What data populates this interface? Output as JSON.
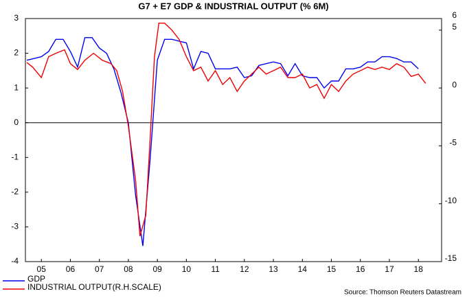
{
  "chart_data": {
    "type": "line",
    "title": "G7 + E7 GDP & INDUSTRIAL OUTPUT (% 6M)",
    "source": "Source: Thomson Reuters Datastream",
    "xlim": [
      2004.95,
      2019.3
    ],
    "xticks": [
      {
        "value": 2005.5,
        "label": "05"
      },
      {
        "value": 2006.5,
        "label": "06"
      },
      {
        "value": 2007.5,
        "label": "07"
      },
      {
        "value": 2008.5,
        "label": "08"
      },
      {
        "value": 2009.5,
        "label": "09"
      },
      {
        "value": 2010.5,
        "label": "10"
      },
      {
        "value": 2011.5,
        "label": "11"
      },
      {
        "value": 2012.5,
        "label": "12"
      },
      {
        "value": 2013.5,
        "label": "13"
      },
      {
        "value": 2014.5,
        "label": "14"
      },
      {
        "value": 2015.5,
        "label": "15"
      },
      {
        "value": 2016.5,
        "label": "16"
      },
      {
        "value": 2017.5,
        "label": "17"
      },
      {
        "value": 2018.5,
        "label": "18"
      }
    ],
    "ylim": [
      -4,
      3
    ],
    "yticks": [
      -4,
      -3,
      -2,
      -1,
      0,
      1,
      2,
      3
    ],
    "y2lim": [
      -15,
      6
    ],
    "y2ticks": [
      -15,
      -10,
      -5,
      0,
      5,
      6
    ],
    "series": [
      {
        "name": "GDP",
        "color": "#0000ee",
        "x": [
          2005.0,
          2005.25,
          2005.5,
          2005.75,
          2006.0,
          2006.25,
          2006.5,
          2006.75,
          2007.0,
          2007.25,
          2007.5,
          2007.75,
          2008.0,
          2008.25,
          2008.5,
          2008.75,
          2009.0,
          2009.25,
          2009.5,
          2009.75,
          2010.0,
          2010.25,
          2010.5,
          2010.75,
          2011.0,
          2011.25,
          2011.5,
          2011.75,
          2012.0,
          2012.25,
          2012.5,
          2012.75,
          2013.0,
          2013.25,
          2013.5,
          2013.75,
          2014.0,
          2014.25,
          2014.5,
          2014.75,
          2015.0,
          2015.25,
          2015.5,
          2015.75,
          2016.0,
          2016.25,
          2016.5,
          2016.75,
          2017.0,
          2017.25,
          2017.5,
          2017.75,
          2018.0,
          2018.25,
          2018.5
        ],
        "values": [
          1.8,
          1.85,
          1.9,
          2.05,
          2.4,
          2.4,
          2.05,
          1.6,
          2.45,
          2.45,
          2.15,
          2.0,
          1.55,
          0.85,
          0.0,
          -2.1,
          -3.55,
          -1.05,
          1.8,
          2.4,
          2.4,
          2.35,
          2.3,
          1.55,
          2.05,
          2.0,
          1.55,
          1.55,
          1.55,
          1.6,
          1.3,
          1.35,
          1.65,
          1.7,
          1.75,
          1.7,
          1.35,
          1.7,
          1.35,
          1.3,
          1.3,
          1.0,
          1.2,
          1.2,
          1.55,
          1.55,
          1.6,
          1.75,
          1.75,
          1.9,
          1.9,
          1.85,
          1.75,
          1.75,
          1.55
        ]
      },
      {
        "name": "INDUSTRIAL OUTPUT(R.H.SCALE)",
        "color": "#ee0000",
        "axis": "y2",
        "x": [
          2005.0,
          2005.2,
          2005.5,
          2005.75,
          2006.0,
          2006.3,
          2006.5,
          2006.75,
          2007.0,
          2007.3,
          2007.6,
          2007.9,
          2008.1,
          2008.3,
          2008.5,
          2008.75,
          2008.9,
          2009.1,
          2009.25,
          2009.4,
          2009.55,
          2009.75,
          2010.0,
          2010.25,
          2010.5,
          2010.75,
          2011.0,
          2011.25,
          2011.5,
          2011.75,
          2012.0,
          2012.25,
          2012.5,
          2012.75,
          2013.0,
          2013.25,
          2013.5,
          2013.75,
          2014.0,
          2014.25,
          2014.5,
          2014.75,
          2015.0,
          2015.25,
          2015.5,
          2015.75,
          2016.0,
          2016.25,
          2016.5,
          2016.75,
          2017.0,
          2017.25,
          2017.5,
          2017.75,
          2018.0,
          2018.25,
          2018.5,
          2018.75
        ],
        "values": [
          2.2,
          1.8,
          0.9,
          2.7,
          3.0,
          3.3,
          2.1,
          1.6,
          2.4,
          3.0,
          2.4,
          2.1,
          1.5,
          -0.3,
          -3.3,
          -8.0,
          -12.8,
          -11.0,
          -4.4,
          2.7,
          5.6,
          5.6,
          5.0,
          4.2,
          2.7,
          1.5,
          1.8,
          0.6,
          1.5,
          0.3,
          0.9,
          -0.3,
          0.6,
          1.2,
          1.8,
          1.2,
          1.5,
          1.8,
          0.9,
          0.9,
          1.2,
          0.0,
          0.3,
          -0.9,
          0.3,
          -0.3,
          0.6,
          1.2,
          1.5,
          1.8,
          1.6,
          1.8,
          1.6,
          2.1,
          1.8,
          1.0,
          1.2,
          0.4
        ]
      }
    ]
  }
}
